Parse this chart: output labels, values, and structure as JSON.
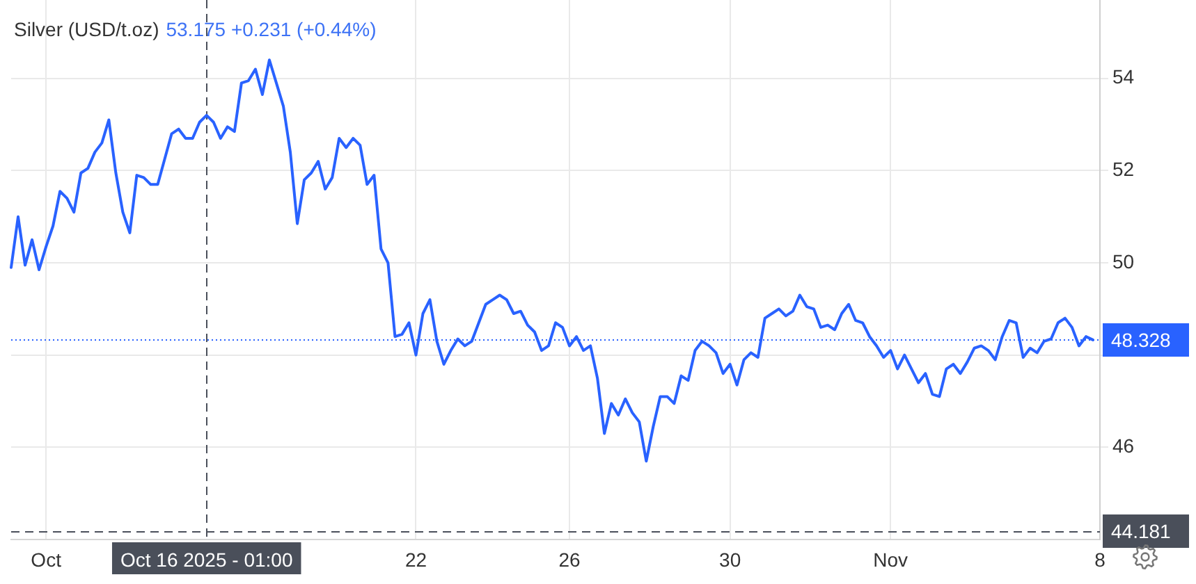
{
  "chart_data": {
    "type": "line",
    "title": "Silver (USD/t.oz)",
    "subtitle": "53.175 +0.231 (+0.44%)",
    "categories": [
      null,
      null,
      null,
      null,
      null,
      "Oct",
      null,
      null,
      null,
      null,
      null,
      null,
      null,
      null,
      null,
      null,
      null,
      null,
      null,
      null,
      null,
      null,
      null,
      null,
      null,
      null,
      null,
      null,
      "Oct 16 2025 - 01:00",
      null,
      null,
      null,
      null,
      null,
      null,
      null,
      null,
      null,
      null,
      null,
      null,
      null,
      null,
      null,
      null,
      null,
      null,
      null,
      null,
      null,
      null,
      null,
      null,
      null,
      null,
      null,
      null,
      null,
      "22",
      null,
      null,
      null,
      null,
      null,
      null,
      null,
      null,
      null,
      null,
      null,
      null,
      null,
      null,
      null,
      null,
      null,
      null,
      null,
      null,
      null,
      "26",
      null,
      null,
      null,
      null,
      null,
      null,
      null,
      null,
      null,
      null,
      null,
      null,
      null,
      null,
      null,
      null,
      null,
      null,
      null,
      null,
      null,
      null,
      "30",
      null,
      null,
      null,
      null,
      null,
      null,
      null,
      null,
      null,
      null,
      null,
      null,
      null,
      null,
      null,
      null,
      null,
      null,
      null,
      null,
      null,
      null,
      "Nov",
      null,
      null,
      null,
      null,
      null,
      null,
      null,
      null,
      null,
      null,
      null,
      null,
      null,
      null,
      null,
      null,
      null,
      null,
      null,
      null,
      null,
      null,
      null,
      null,
      null,
      null,
      null,
      null,
      null,
      "8"
    ],
    "values": [
      49.9,
      51.0,
      49.95,
      50.5,
      49.85,
      50.35,
      50.8,
      51.55,
      51.4,
      51.1,
      51.95,
      52.05,
      52.4,
      52.6,
      53.1,
      51.95,
      51.1,
      50.65,
      51.9,
      51.85,
      51.7,
      51.7,
      52.25,
      52.8,
      52.9,
      52.7,
      52.7,
      53.05,
      53.2,
      53.05,
      52.7,
      52.95,
      52.85,
      53.9,
      53.95,
      54.2,
      53.65,
      54.4,
      53.9,
      53.4,
      52.4,
      50.85,
      51.8,
      51.95,
      52.2,
      51.6,
      51.85,
      52.7,
      52.5,
      52.7,
      52.55,
      51.7,
      51.9,
      50.3,
      50.0,
      48.4,
      48.45,
      48.7,
      48.0,
      48.9,
      49.2,
      48.3,
      47.8,
      48.1,
      48.35,
      48.2,
      48.3,
      48.7,
      49.1,
      49.2,
      49.3,
      49.2,
      48.9,
      48.95,
      48.65,
      48.5,
      48.1,
      48.2,
      48.7,
      48.6,
      48.2,
      48.4,
      48.1,
      48.2,
      47.5,
      46.3,
      46.95,
      46.7,
      47.05,
      46.75,
      46.55,
      45.7,
      46.45,
      47.1,
      47.1,
      46.95,
      47.55,
      47.45,
      48.1,
      48.3,
      48.2,
      48.05,
      47.6,
      47.8,
      47.35,
      47.9,
      48.05,
      47.95,
      48.8,
      48.9,
      49.0,
      48.85,
      48.95,
      49.3,
      49.05,
      49.0,
      48.6,
      48.65,
      48.55,
      48.9,
      49.1,
      48.75,
      48.7,
      48.4,
      48.2,
      47.95,
      48.1,
      47.7,
      48.0,
      47.7,
      47.4,
      47.6,
      47.15,
      47.1,
      47.7,
      47.8,
      47.6,
      47.85,
      48.15,
      48.2,
      48.1,
      47.9,
      48.4,
      48.75,
      48.7,
      47.95,
      48.15,
      48.05,
      48.3,
      48.35,
      48.7,
      48.8,
      48.6,
      48.2,
      48.4,
      48.33,
      null
    ],
    "color": "#2962ff",
    "ylim": [
      44,
      55.7
    ],
    "yticks": [
      46,
      {
        "value": 48,
        "label": null
      },
      50,
      52,
      54
    ],
    "grid": true,
    "ref_lines": [
      {
        "axis": "x",
        "value": "Oct 16 2025 - 01:00",
        "color": "#4a4f5a",
        "line_style": "dashed"
      },
      {
        "axis": "y",
        "value": 48.328,
        "label": "48.328",
        "color": "#2962ff",
        "line_style": "dotted"
      },
      {
        "axis": "y",
        "value": 44.181,
        "label": "44.181",
        "color": "#4a4f5a",
        "line_style": "dashed"
      }
    ]
  }
}
